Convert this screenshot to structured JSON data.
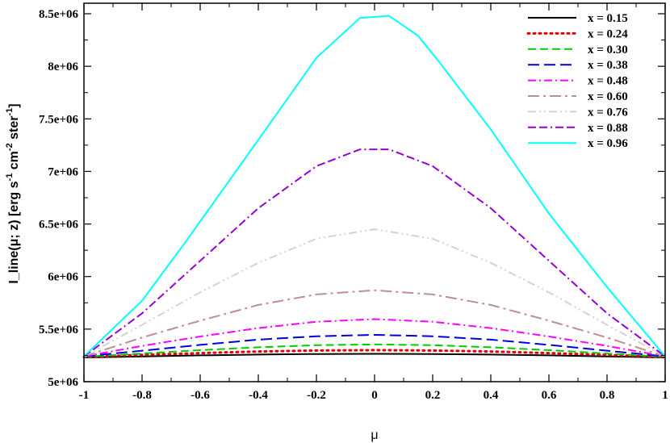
{
  "chart_data": {
    "type": "line",
    "xlabel": "μ",
    "ylabel_main": "I_line(μ; z) [erg s",
    "ylabel_parts": [
      "I_line(μ; z) [erg s",
      "-1",
      " cm",
      "-2",
      " ster",
      "-1",
      "]"
    ],
    "xlim": [
      -1,
      1
    ],
    "ylim": [
      5000000,
      8600000
    ],
    "x_ticks": [
      -1,
      -0.8,
      -0.6,
      -0.4,
      -0.2,
      0,
      0.2,
      0.4,
      0.6,
      0.8,
      1
    ],
    "x_tick_labels": [
      "-1",
      "-0.8",
      "-0.6",
      "-0.4",
      "-0.2",
      "0",
      "0.2",
      "0.4",
      "0.6",
      "0.8",
      "1"
    ],
    "y_ticks": [
      5000000,
      5500000,
      6000000,
      6500000,
      7000000,
      7500000,
      8000000,
      8500000
    ],
    "y_tick_labels": [
      "5e+06",
      "5.5e+06",
      "6e+06",
      "6.5e+06",
      "7e+06",
      "7.5e+06",
      "8e+06",
      "8.5e+06"
    ],
    "grid": false,
    "legend_position": "top-right",
    "series": [
      {
        "name": "x = 0.15",
        "color": "#000000",
        "dash": "solid",
        "x": [
          -1,
          -0.8,
          -0.6,
          -0.4,
          -0.2,
          0,
          0.2,
          0.4,
          0.6,
          0.8,
          1
        ],
        "y": [
          5230000,
          5240000,
          5250000,
          5258000,
          5263000,
          5265000,
          5263000,
          5258000,
          5250000,
          5240000,
          5230000
        ]
      },
      {
        "name": "x = 0.24",
        "color": "#e00000",
        "dash": "dotted",
        "x": [
          -1,
          -0.8,
          -0.6,
          -0.4,
          -0.2,
          0,
          0.2,
          0.4,
          0.6,
          0.8,
          1
        ],
        "y": [
          5235000,
          5255000,
          5272000,
          5287000,
          5296000,
          5300000,
          5296000,
          5287000,
          5272000,
          5255000,
          5235000
        ]
      },
      {
        "name": "x = 0.30",
        "color": "#00cc00",
        "dash": "dash",
        "x": [
          -1,
          -0.8,
          -0.6,
          -0.4,
          -0.2,
          0,
          0.2,
          0.4,
          0.6,
          0.8,
          1
        ],
        "y": [
          5237000,
          5268000,
          5300000,
          5327000,
          5347000,
          5355000,
          5347000,
          5327000,
          5300000,
          5268000,
          5237000
        ]
      },
      {
        "name": "x = 0.38",
        "color": "#0000dd",
        "dash": "longdash",
        "x": [
          -1,
          -0.8,
          -0.6,
          -0.4,
          -0.2,
          0,
          0.2,
          0.4,
          0.6,
          0.8,
          1
        ],
        "y": [
          5240000,
          5295000,
          5350000,
          5400000,
          5432000,
          5445000,
          5432000,
          5400000,
          5350000,
          5295000,
          5240000
        ]
      },
      {
        "name": "x = 0.48",
        "color": "#ff00ff",
        "dash": "dashdot",
        "x": [
          -1,
          -0.8,
          -0.6,
          -0.4,
          -0.2,
          0,
          0.2,
          0.4,
          0.6,
          0.8,
          1
        ],
        "y": [
          5240000,
          5340000,
          5430000,
          5510000,
          5570000,
          5595000,
          5570000,
          5510000,
          5430000,
          5340000,
          5240000
        ]
      },
      {
        "name": "x = 0.60",
        "color": "#bc8f8f",
        "dash": "longdashdot",
        "x": [
          -1,
          -0.8,
          -0.6,
          -0.4,
          -0.2,
          0,
          0.2,
          0.4,
          0.6,
          0.8,
          1
        ],
        "y": [
          5240000,
          5420000,
          5580000,
          5730000,
          5830000,
          5870000,
          5830000,
          5730000,
          5580000,
          5420000,
          5240000
        ]
      },
      {
        "name": "x = 0.76",
        "color": "#d3d3d3",
        "dash": "dashdotdot",
        "x": [
          -1,
          -0.8,
          -0.6,
          -0.4,
          -0.2,
          0,
          0.2,
          0.4,
          0.6,
          0.8,
          1
        ],
        "y": [
          5240000,
          5540000,
          5850000,
          6130000,
          6360000,
          6450000,
          6360000,
          6130000,
          5850000,
          5540000,
          5240000
        ]
      },
      {
        "name": "x = 0.88",
        "color": "#9400d3",
        "dash": "dashdashdot",
        "x": [
          -1,
          -0.8,
          -0.6,
          -0.4,
          -0.2,
          -0.05,
          0.05,
          0.2,
          0.4,
          0.6,
          0.8,
          1
        ],
        "y": [
          5240000,
          5650000,
          6150000,
          6650000,
          7050000,
          7210000,
          7210000,
          7050000,
          6650000,
          6150000,
          5650000,
          5240000
        ]
      },
      {
        "name": "x = 0.96",
        "color": "#00ffff",
        "dash": "solid",
        "x": [
          -1,
          -0.8,
          -0.65,
          -0.4,
          -0.2,
          -0.05,
          0.05,
          0.15,
          0.22,
          0.4,
          0.6,
          0.8,
          1
        ],
        "y": [
          5240000,
          5770000,
          6330000,
          7300000,
          8080000,
          8460000,
          8480000,
          8290000,
          8050000,
          7400000,
          6600000,
          5900000,
          5240000
        ]
      }
    ]
  }
}
